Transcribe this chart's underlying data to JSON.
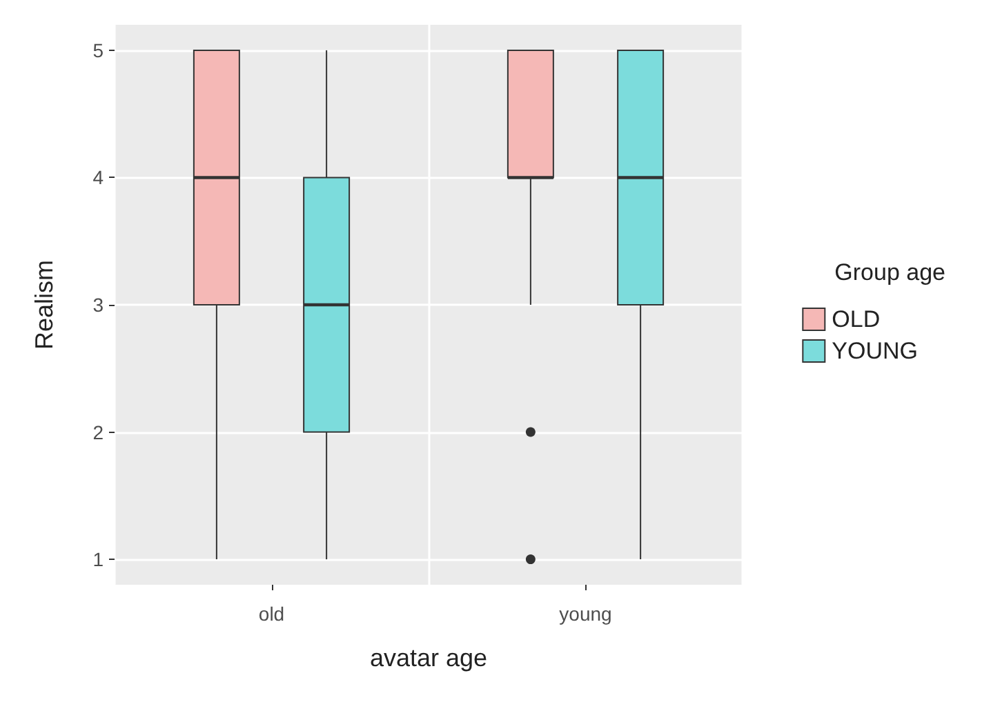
{
  "chart_data": {
    "type": "box",
    "xlabel": "avatar age",
    "ylabel": "Realism",
    "legend_title": "Group age",
    "categories": [
      "old",
      "young"
    ],
    "series": [
      {
        "name": "OLD",
        "color": "#f5b8b6",
        "boxes": [
          {
            "low": 1,
            "q1": 3,
            "median": 4,
            "q3": 5,
            "high": 5
          },
          {
            "low": 3,
            "q1": 4,
            "median": 4,
            "q3": 5,
            "high": 5,
            "outliers": [
              2,
              1
            ]
          }
        ]
      },
      {
        "name": "YOUNG",
        "color": "#7cdcdc",
        "boxes": [
          {
            "low": 1,
            "q1": 2,
            "median": 3,
            "q3": 4,
            "high": 5
          },
          {
            "low": 1,
            "q1": 3,
            "median": 4,
            "q3": 5,
            "high": 5
          }
        ]
      }
    ],
    "ylim": [
      0.8,
      5.2
    ],
    "yticks": [
      1,
      2,
      3,
      4,
      5
    ],
    "grid": true,
    "legend": "right"
  }
}
